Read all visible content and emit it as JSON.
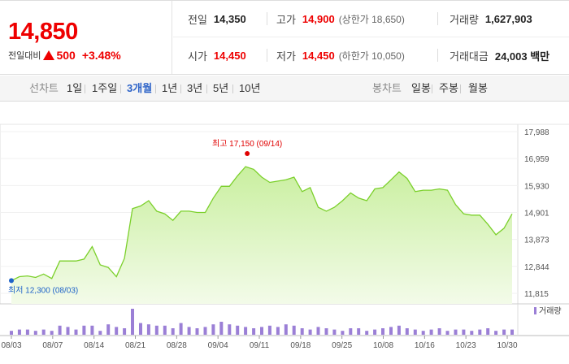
{
  "header": {
    "price": "14,850",
    "change_label": "전일대비",
    "change_value": "500",
    "change_pct": "+3.48%",
    "prev_close_label": "전일",
    "prev_close": "14,350",
    "high_label": "고가",
    "high": "14,900",
    "upper_limit": "(상한가 18,650)",
    "volume_label": "거래량",
    "volume": "1,627,903",
    "open_label": "시가",
    "open": "14,450",
    "low_label": "저가",
    "low": "14,450",
    "lower_limit": "(하한가 10,050)",
    "amount_label": "거래대금",
    "amount": "24,003 백만"
  },
  "toolbar": {
    "line_label": "선차트",
    "periods": [
      "1일",
      "1주일",
      "3개월",
      "1년",
      "3년",
      "5년",
      "10년"
    ],
    "active_period": "3개월",
    "candle_label": "봉차트",
    "candles": [
      "일봉",
      "주봉",
      "월봉"
    ]
  },
  "colors": {
    "up": "#e00000",
    "line": "#7bd02b",
    "area": "#e7f7d4",
    "volume": "#9b7fd6",
    "low_marker": "#1f63c8",
    "active_tab": "#2d63c8"
  },
  "chart_data": {
    "type": "area",
    "y_ticks": [
      "17,988",
      "16,959",
      "15,930",
      "14,901",
      "13,873",
      "12,844",
      "11,815"
    ],
    "ylim": [
      11815,
      17988
    ],
    "x_ticks": [
      "08/03",
      "08/07",
      "08/14",
      "08/21",
      "08/28",
      "09/04",
      "09/11",
      "09/18",
      "09/25",
      "10/08",
      "10/16",
      "10/23",
      "10/30"
    ],
    "max_label": "최고 17,150 (09/14)",
    "min_label": "최저 12,300 (08/03)",
    "volume_legend": "거래량",
    "prices": [
      12300,
      12450,
      12480,
      12420,
      12550,
      12380,
      13050,
      13050,
      13050,
      13120,
      13600,
      12900,
      12800,
      12450,
      13150,
      15050,
      15150,
      15350,
      14950,
      14850,
      14600,
      14950,
      14950,
      14900,
      14900,
      15450,
      15900,
      15900,
      16300,
      16650,
      16550,
      16250,
      16050,
      16100,
      16150,
      16250,
      15700,
      15850,
      15100,
      14950,
      15100,
      15350,
      15650,
      15450,
      15350,
      15800,
      15850,
      16150,
      16450,
      16200,
      15700,
      15750,
      15750,
      15800,
      15750,
      15200,
      14850,
      14800,
      14800,
      14450,
      14050,
      14300,
      14850
    ],
    "volumes": [
      3,
      4,
      4,
      3,
      4,
      3,
      7,
      6,
      4,
      7,
      7,
      3,
      8,
      6,
      5,
      20,
      9,
      8,
      7,
      7,
      5,
      9,
      6,
      5,
      6,
      8,
      10,
      8,
      7,
      6,
      5,
      6,
      7,
      6,
      8,
      7,
      5,
      4,
      6,
      5,
      4,
      3,
      5,
      5,
      3,
      4,
      5,
      6,
      7,
      5,
      4,
      3,
      4,
      5,
      3,
      4,
      4,
      3,
      4,
      5,
      3,
      4,
      4
    ]
  }
}
